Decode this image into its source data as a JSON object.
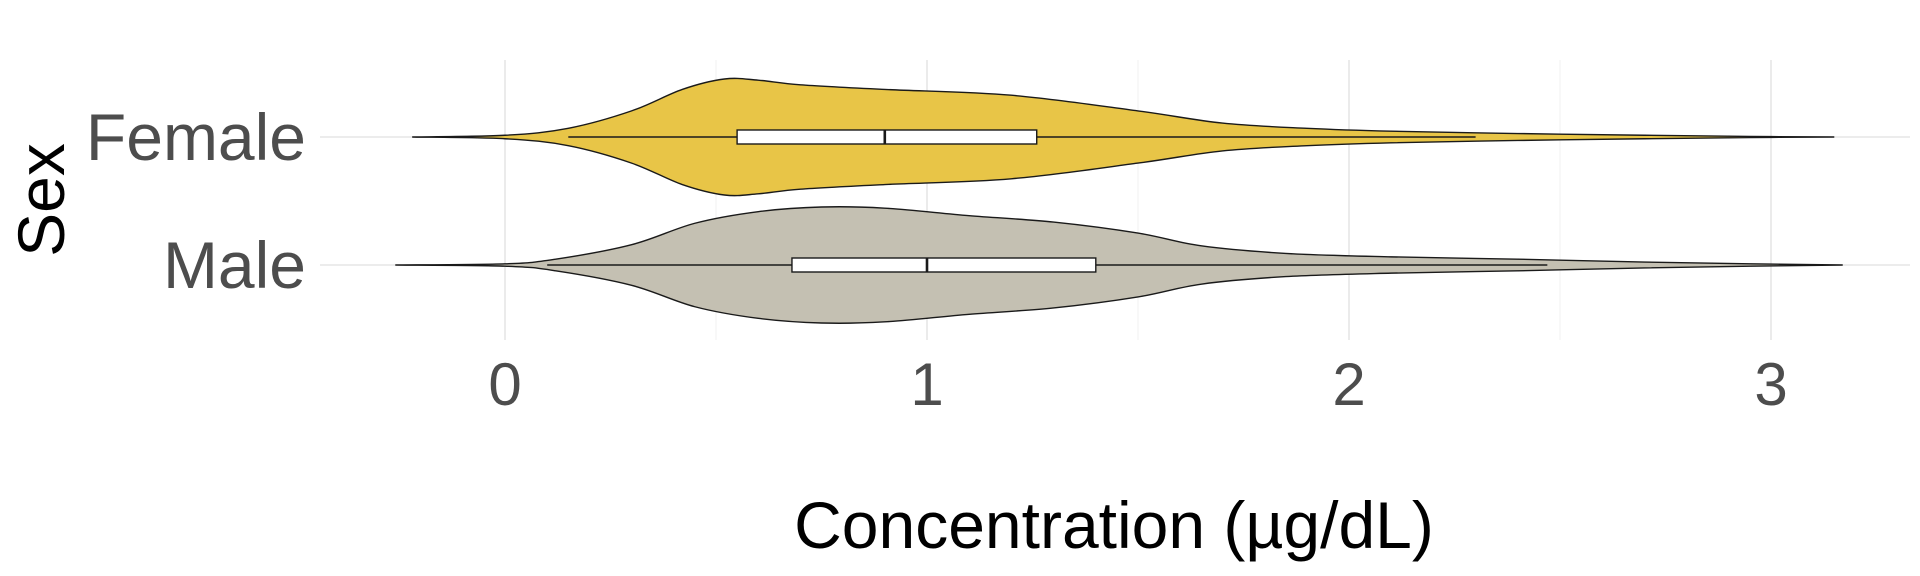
{
  "chart_data": {
    "type": "violin",
    "orientation": "horizontal",
    "xlabel": "Concentration (µg/dL)",
    "ylabel": "Sex",
    "xlim": [
      -0.45,
      3.3
    ],
    "x_ticks": [
      0,
      1,
      2,
      3
    ],
    "x_tick_labels": [
      "0",
      "1",
      "2",
      "3"
    ],
    "grid": true,
    "legend": "none",
    "series": [
      {
        "name": "Female",
        "color": "#E8C547",
        "violin_range": [
          -0.22,
          3.15
        ],
        "density": [
          [
            -0.22,
            0.0
          ],
          [
            0.0,
            0.03
          ],
          [
            0.15,
            0.15
          ],
          [
            0.3,
            0.45
          ],
          [
            0.42,
            0.82
          ],
          [
            0.52,
            1.0
          ],
          [
            0.6,
            0.98
          ],
          [
            0.7,
            0.9
          ],
          [
            0.9,
            0.82
          ],
          [
            1.2,
            0.72
          ],
          [
            1.5,
            0.45
          ],
          [
            1.7,
            0.24
          ],
          [
            1.9,
            0.15
          ],
          [
            2.1,
            0.1
          ],
          [
            2.4,
            0.06
          ],
          [
            2.7,
            0.03
          ],
          [
            2.95,
            0.01
          ],
          [
            3.15,
            0.0
          ]
        ],
        "box": {
          "q1": 0.55,
          "median": 0.9,
          "q3": 1.26
        },
        "whiskers": [
          0.15,
          2.3
        ]
      },
      {
        "name": "Male",
        "color": "#C4C0B2",
        "violin_range": [
          -0.26,
          3.17
        ],
        "density": [
          [
            -0.26,
            0.0
          ],
          [
            0.0,
            0.02
          ],
          [
            0.12,
            0.1
          ],
          [
            0.3,
            0.35
          ],
          [
            0.45,
            0.72
          ],
          [
            0.6,
            0.92
          ],
          [
            0.75,
            1.0
          ],
          [
            0.9,
            0.98
          ],
          [
            1.1,
            0.85
          ],
          [
            1.3,
            0.74
          ],
          [
            1.5,
            0.55
          ],
          [
            1.65,
            0.33
          ],
          [
            1.85,
            0.2
          ],
          [
            2.1,
            0.14
          ],
          [
            2.4,
            0.1
          ],
          [
            2.7,
            0.05
          ],
          [
            2.95,
            0.02
          ],
          [
            3.17,
            0.0
          ]
        ],
        "box": {
          "q1": 0.68,
          "median": 1.0,
          "q3": 1.4
        },
        "whiskers": [
          0.1,
          2.47
        ]
      }
    ]
  }
}
